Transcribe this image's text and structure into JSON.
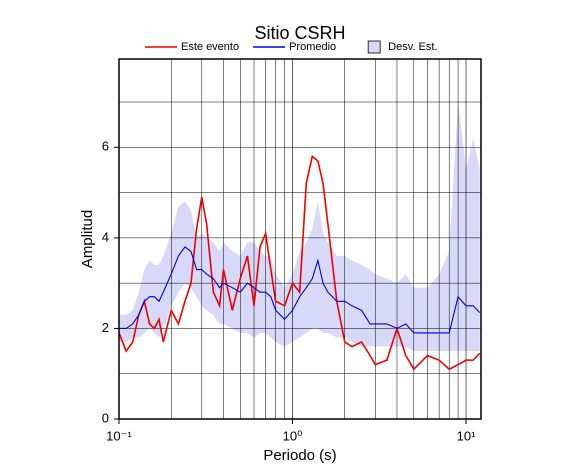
{
  "chart_data": {
    "type": "line",
    "title": "Sitio CSRH",
    "xlabel": "Periodo (s)",
    "ylabel": "Amplitud",
    "xscale": "log",
    "grid": true,
    "legend": "top",
    "xlim": [
      0.1,
      12.2
    ],
    "ylim": [
      0,
      7.95
    ],
    "xticks": [
      {
        "value": 0.1,
        "label": "10⁻¹"
      },
      {
        "value": 1,
        "label": "10⁰"
      },
      {
        "value": 10,
        "label": "10¹"
      }
    ],
    "xminorticks": [
      0.2,
      0.3,
      0.4,
      0.5,
      0.6,
      0.7,
      0.8,
      0.9,
      2,
      3,
      4,
      5,
      6,
      7,
      8,
      9
    ],
    "yticks": [
      0,
      2,
      4,
      6
    ],
    "yminorticks": [
      1,
      3,
      5,
      7
    ],
    "x": [
      0.1,
      0.11,
      0.12,
      0.13,
      0.14,
      0.15,
      0.16,
      0.17,
      0.18,
      0.2,
      0.22,
      0.24,
      0.26,
      0.28,
      0.3,
      0.32,
      0.35,
      0.38,
      0.4,
      0.45,
      0.5,
      0.55,
      0.6,
      0.65,
      0.7,
      0.75,
      0.8,
      0.9,
      1.0,
      1.1,
      1.2,
      1.3,
      1.4,
      1.5,
      1.6,
      1.8,
      2.0,
      2.2,
      2.5,
      2.8,
      3.0,
      3.5,
      4.0,
      4.5,
      5.0,
      6.0,
      7.0,
      8.0,
      9.0,
      10,
      11,
      12
    ],
    "series": [
      {
        "name": "Este evento",
        "color": "#ee0000",
        "values": [
          1.9,
          1.5,
          1.7,
          2.3,
          2.6,
          2.1,
          2.0,
          2.2,
          1.7,
          2.4,
          2.1,
          2.6,
          3.0,
          4.2,
          4.9,
          4.3,
          2.8,
          2.5,
          3.3,
          2.4,
          3.1,
          3.6,
          2.5,
          3.8,
          4.1,
          3.3,
          2.6,
          2.5,
          3.0,
          2.8,
          5.2,
          5.8,
          5.7,
          5.2,
          4.3,
          2.6,
          1.7,
          1.6,
          1.7,
          1.4,
          1.2,
          1.3,
          2.0,
          1.4,
          1.1,
          1.4,
          1.3,
          1.1,
          1.2,
          1.3,
          1.3,
          1.45
        ]
      },
      {
        "name": "Promedio",
        "color": "#0000dd",
        "values": [
          2.0,
          2.0,
          2.1,
          2.3,
          2.6,
          2.7,
          2.7,
          2.6,
          2.8,
          3.2,
          3.6,
          3.8,
          3.7,
          3.3,
          3.3,
          3.2,
          3.1,
          2.9,
          3.0,
          2.9,
          2.8,
          3.0,
          2.9,
          2.8,
          2.8,
          2.7,
          2.4,
          2.2,
          2.4,
          2.7,
          2.9,
          3.1,
          3.5,
          3.0,
          2.8,
          2.6,
          2.6,
          2.5,
          2.4,
          2.1,
          2.1,
          2.1,
          2.0,
          2.1,
          1.9,
          1.9,
          1.9,
          1.9,
          2.7,
          2.5,
          2.5,
          2.35
        ]
      },
      {
        "name": "Desv. Est.",
        "color": "#d8d8f8",
        "lower": [
          1.7,
          1.7,
          1.8,
          1.8,
          1.9,
          2.0,
          1.9,
          1.8,
          2.0,
          2.5,
          2.8,
          3.0,
          2.9,
          2.7,
          2.5,
          2.4,
          2.3,
          2.1,
          2.1,
          2.0,
          1.9,
          1.9,
          1.8,
          1.9,
          1.9,
          1.8,
          1.7,
          1.6,
          1.7,
          1.8,
          1.9,
          2.0,
          2.0,
          1.9,
          1.9,
          1.8,
          1.8,
          1.7,
          1.6,
          1.6,
          1.6,
          1.6,
          1.6,
          1.6,
          1.5,
          1.5,
          1.5,
          1.5,
          1.5,
          1.5,
          1.5,
          1.5
        ],
        "upper": [
          2.3,
          2.3,
          2.4,
          2.8,
          3.3,
          3.5,
          3.4,
          3.4,
          3.6,
          4.1,
          4.7,
          4.8,
          4.6,
          4.0,
          4.1,
          4.0,
          3.9,
          3.7,
          3.9,
          3.7,
          3.6,
          3.9,
          3.9,
          3.7,
          3.6,
          3.6,
          3.2,
          2.9,
          3.2,
          3.7,
          3.9,
          4.2,
          4.8,
          4.1,
          3.9,
          3.6,
          3.6,
          3.5,
          3.4,
          3.3,
          3.2,
          3.1,
          3.0,
          3.2,
          2.9,
          2.9,
          3.2,
          3.7,
          7.0,
          5.5,
          6.2,
          5.5
        ]
      }
    ]
  }
}
